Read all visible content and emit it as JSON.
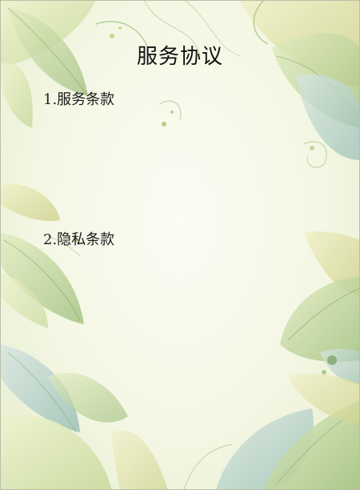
{
  "document": {
    "title": "服务协议",
    "sections": [
      {
        "heading": "1.服务条款",
        "body": ""
      },
      {
        "heading": "2.隐私条款",
        "body": ""
      }
    ]
  },
  "theme": {
    "leaf_light": "#dfe8b8",
    "leaf_mid": "#b9cf8c",
    "leaf_dark": "#7fa56a",
    "leaf_teal": "#a9c9c2",
    "vine": "#9bbf7a"
  }
}
